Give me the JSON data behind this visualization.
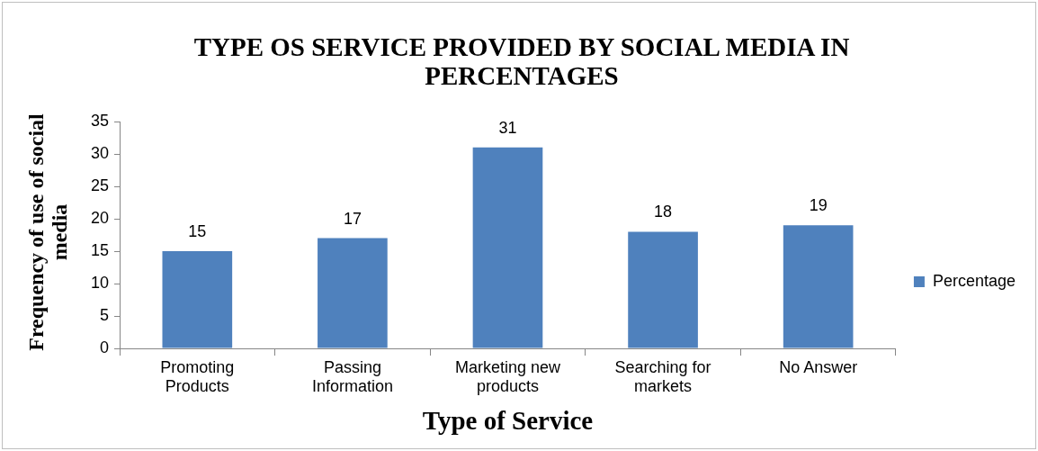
{
  "chart_data": {
    "type": "bar",
    "title": "TYPE OS SERVICE PROVIDED BY SOCIAL MEDIA IN PERCENTAGES",
    "xlabel": "Type of Service",
    "ylabel": "Frequency of use of social media",
    "categories": [
      "Promoting Products",
      "Passing Information",
      "Marketing new products",
      "Searching for markets",
      "No Answer"
    ],
    "series": [
      {
        "name": "Percentage",
        "color": "#4f81bd",
        "values": [
          15,
          17,
          31,
          18,
          19
        ]
      }
    ],
    "ylim": [
      0,
      35
    ],
    "yticks": [
      0,
      5,
      10,
      15,
      20,
      25,
      30,
      35
    ],
    "grid": false,
    "legend": "right",
    "data_labels": true
  }
}
